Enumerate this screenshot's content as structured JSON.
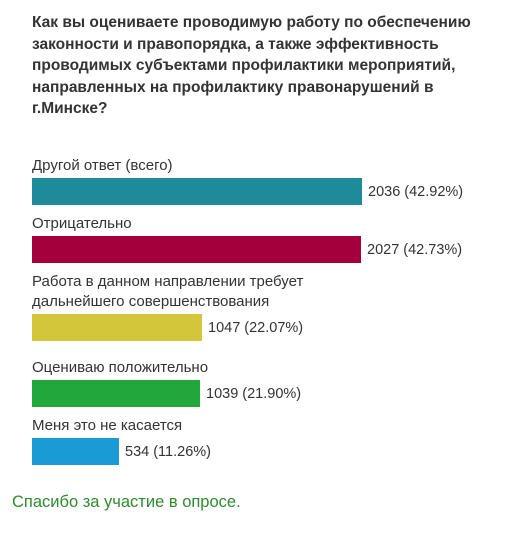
{
  "poll": {
    "question": "Как вы оцениваете проводимую работу по обеспечению законности и правопорядка, а также эффективность проводимых субъектами профилактики мероприятий, направленных на профилактику правонарушений в г.Минске?",
    "thanks": "Спасибо за участие в опросе."
  },
  "chart_data": {
    "type": "bar",
    "orientation": "horizontal",
    "categories": [
      "Другой ответ  (всего)",
      "Отрицательно",
      "Работа в данном направлении требует дальнейшего совершенствования",
      "Оцениваю положительно",
      "Меня это не касается"
    ],
    "values": [
      2036,
      2027,
      1047,
      1039,
      534
    ],
    "percents": [
      "42.92%",
      "42.73%",
      "22.07%",
      "21.90%",
      "11.26%"
    ],
    "value_labels": [
      "2036 (42.92%)",
      "2027 (42.73%)",
      "1047 (22.07%)",
      "1039 (21.90%)",
      "534 (11.26%)"
    ],
    "colors": [
      "#1f8a9a",
      "#a3003c",
      "#d4c63a",
      "#22a83a",
      "#1b9bd6"
    ],
    "grid": false,
    "legend": "none"
  }
}
